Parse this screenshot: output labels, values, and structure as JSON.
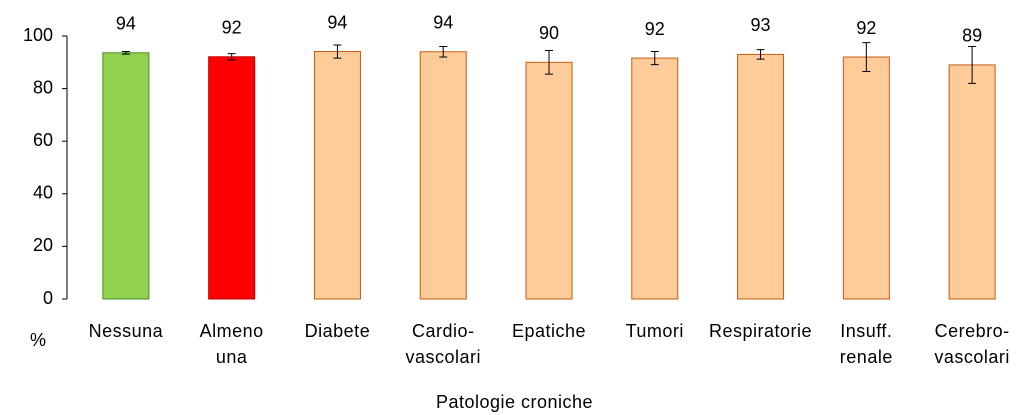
{
  "chart_data": {
    "type": "bar",
    "x_label": "Patologie croniche",
    "y_label": "%",
    "categories": [
      "Nessuna",
      "Almeno\nuna",
      "Diabete",
      "Cardio-\nvascolari",
      "Epatiche",
      "Tumori",
      "Respiratorie",
      "Insuff.\nrenale",
      "Cerebro-\nvascolari"
    ],
    "values": [
      93.6,
      92.1,
      94.1,
      94,
      90,
      91.6,
      93,
      92,
      89
    ],
    "value_labels": [
      "94",
      "92",
      "94",
      "94",
      "90",
      "92",
      "93",
      "92",
      "89"
    ],
    "errors": [
      0.5,
      1.2,
      2.5,
      2,
      4.5,
      2.5,
      1.8,
      5.5,
      7
    ],
    "colors": [
      "#92d050",
      "#ff0000",
      "#ffcc99",
      "#ffcc99",
      "#ffcc99",
      "#ffcc99",
      "#ffcc99",
      "#ffcc99",
      "#ffcc99"
    ],
    "border_colors": [
      "#3f8f1f",
      "#c00000",
      "#c55a11",
      "#c55a11",
      "#c55a11",
      "#c55a11",
      "#c55a11",
      "#c55a11",
      "#c55a11"
    ],
    "ylim": [
      0,
      100
    ],
    "yticks": [
      0,
      20,
      40,
      60,
      80,
      100
    ],
    "grid": false
  }
}
